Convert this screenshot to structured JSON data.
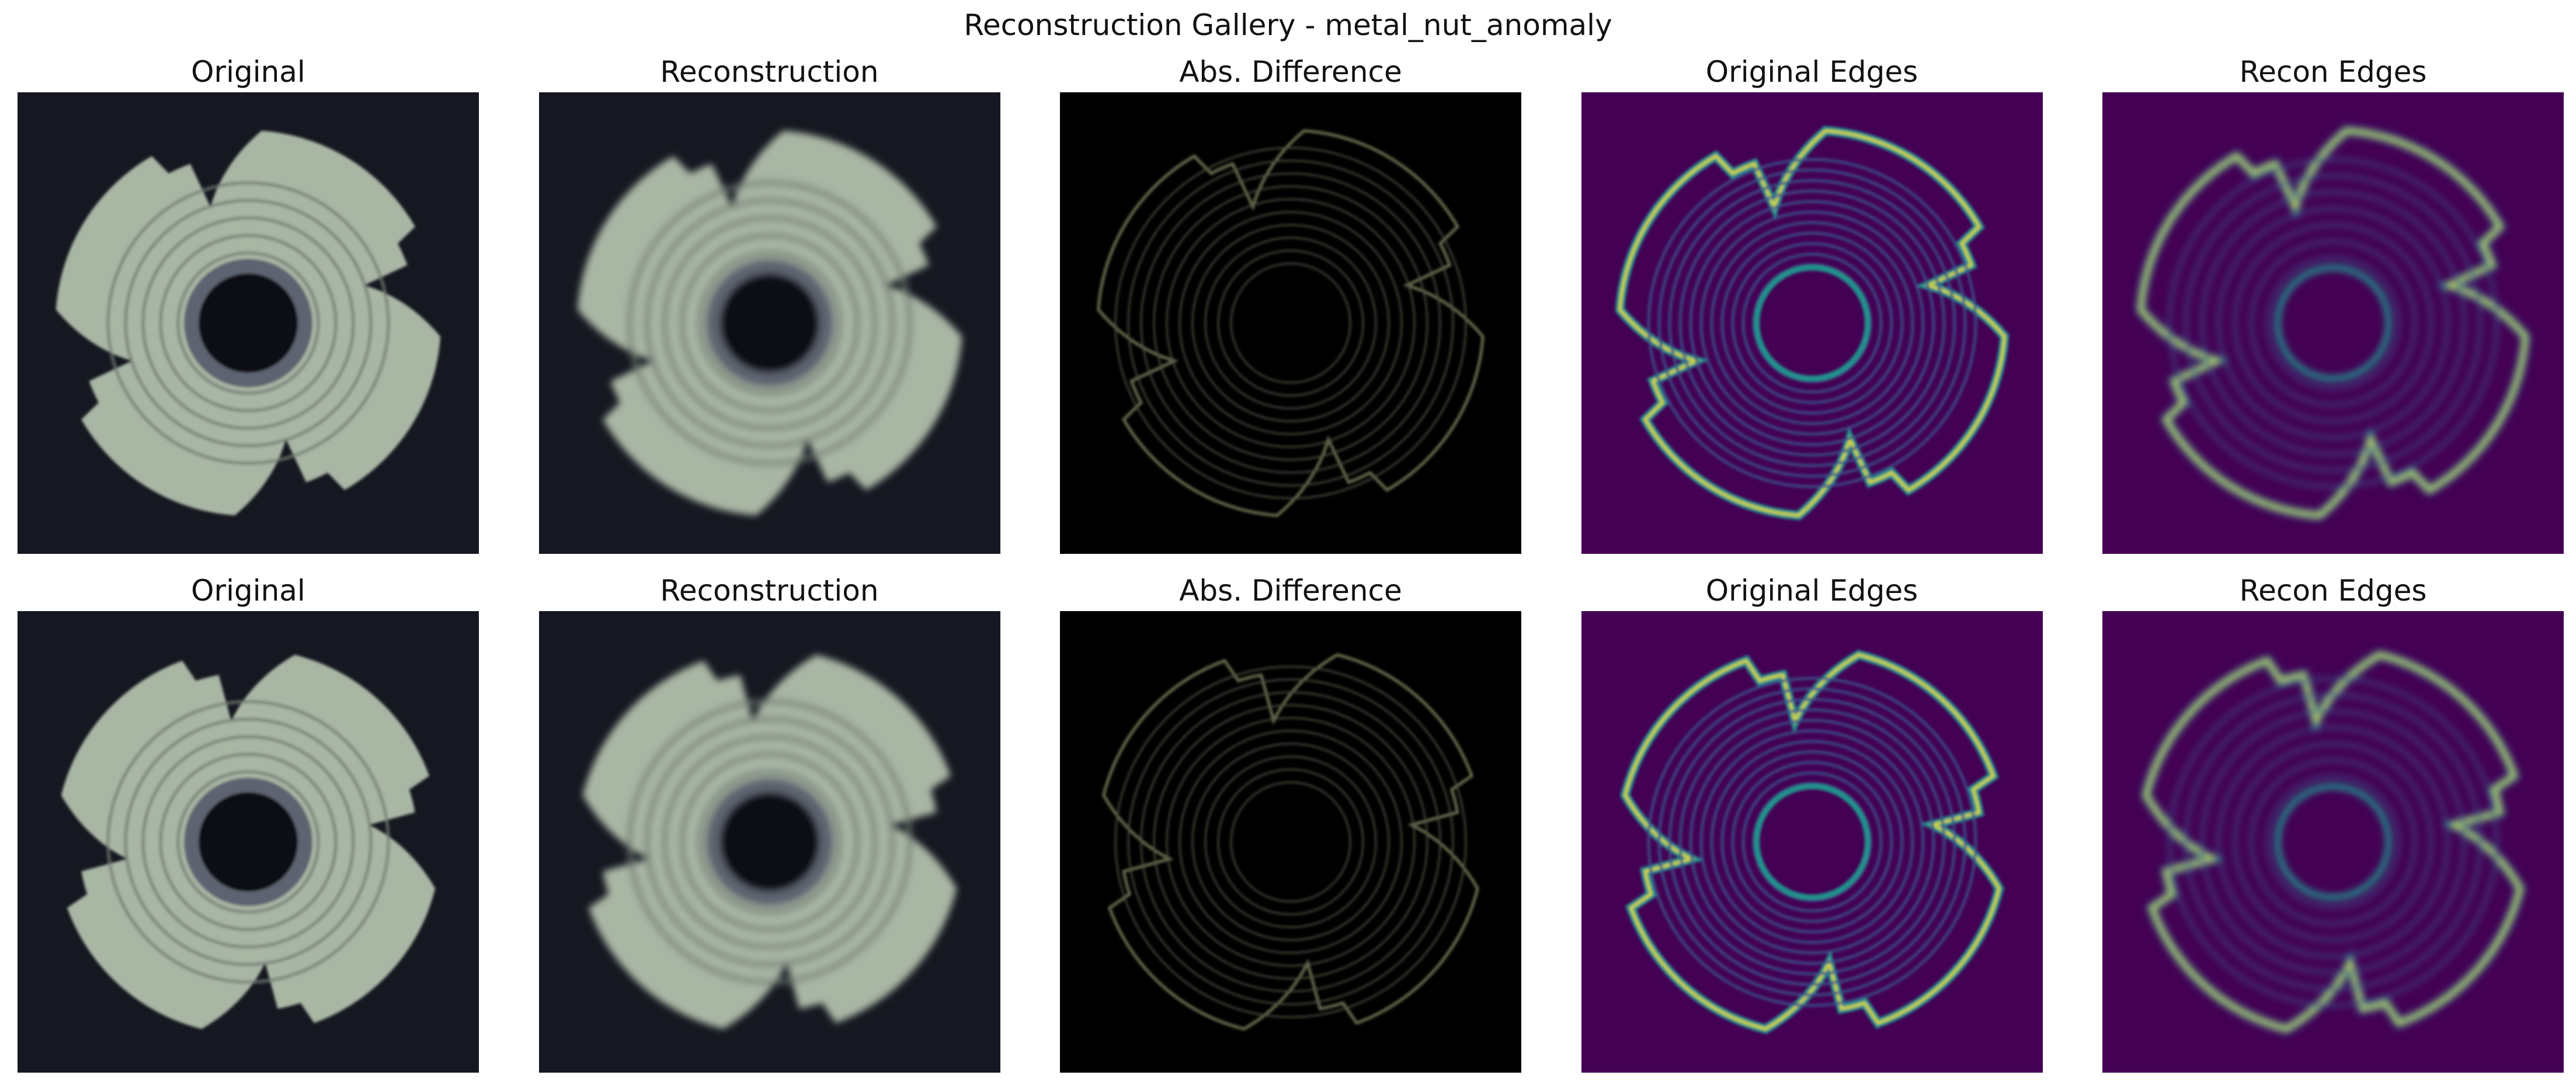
{
  "figure": {
    "title": "Reconstruction Gallery - metal_nut_anomaly"
  },
  "rows": [
    {
      "panels": [
        {
          "title": "Original",
          "kind": "original"
        },
        {
          "title": "Reconstruction",
          "kind": "reconstruction"
        },
        {
          "title": "Abs. Difference",
          "kind": "difference"
        },
        {
          "title": "Original Edges",
          "kind": "edges-sharp"
        },
        {
          "title": "Recon Edges",
          "kind": "edges-smooth"
        }
      ]
    },
    {
      "panels": [
        {
          "title": "Original",
          "kind": "original"
        },
        {
          "title": "Reconstruction",
          "kind": "reconstruction"
        },
        {
          "title": "Abs. Difference",
          "kind": "difference"
        },
        {
          "title": "Original Edges",
          "kind": "edges-sharp"
        },
        {
          "title": "Recon Edges",
          "kind": "edges-smooth"
        }
      ]
    }
  ],
  "colors": {
    "photo_background": "#161821",
    "metal": "#a9b6a4",
    "edge_background": "#440154",
    "edge_mid": "#21918c",
    "edge_high": "#fde725"
  }
}
